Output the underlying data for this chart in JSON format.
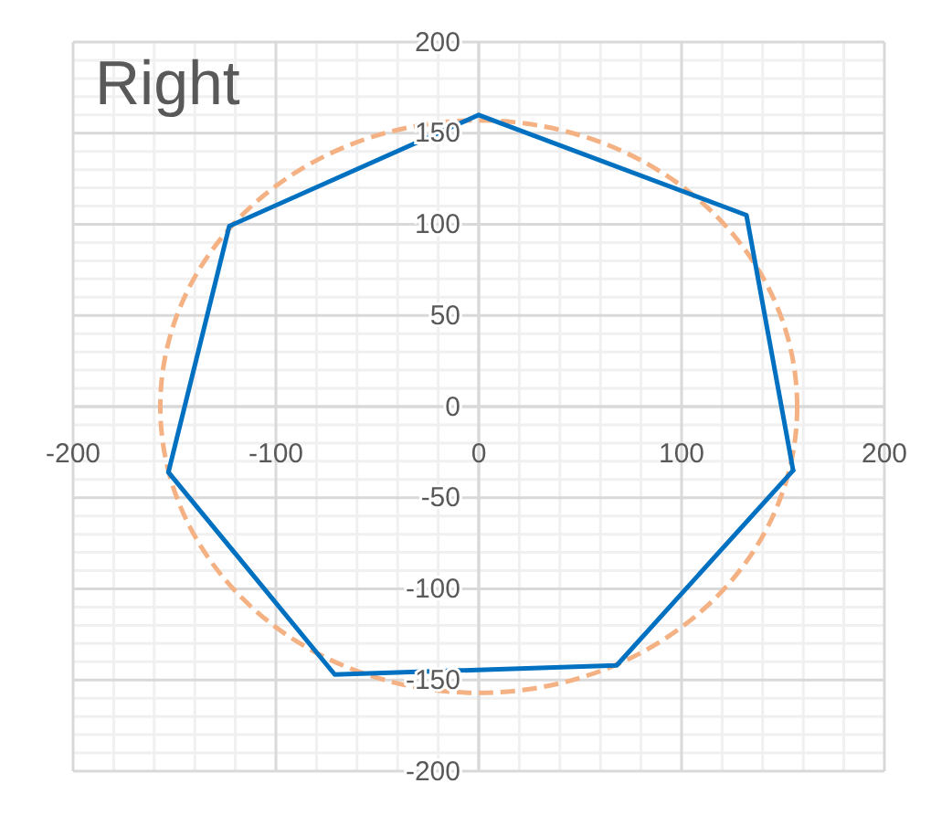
{
  "chart_data": {
    "type": "line",
    "title": "Right",
    "xlim": [
      -200,
      200
    ],
    "ylim": [
      -200,
      200
    ],
    "xticks": [
      -200,
      -100,
      0,
      100,
      200
    ],
    "yticks": [
      -200,
      -150,
      -100,
      -50,
      0,
      50,
      100,
      150,
      200
    ],
    "grid": true,
    "marker": "none",
    "series": [
      {
        "color": "#0070c0",
        "line_style": "solid",
        "x": [
          -153,
          -123,
          0,
          132,
          155
        ],
        "values": [
          -36,
          99,
          160,
          105,
          -35
        ]
      },
      {
        "color": "#0070c0",
        "line_style": "solid",
        "x": [
          -153,
          -71,
          68,
          155
        ],
        "values": [
          -36,
          -147,
          -142,
          -35
        ]
      }
    ]
  }
}
